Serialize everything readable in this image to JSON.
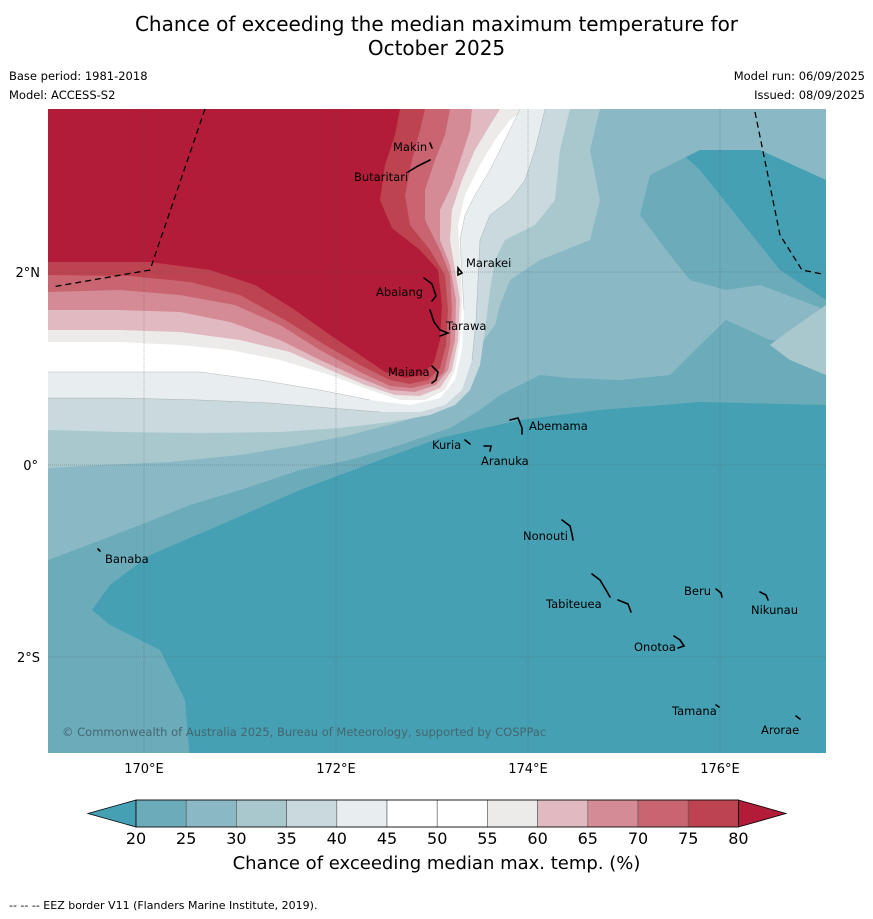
{
  "header": {
    "title_line1": "Chance of exceeding the median maximum temperature for",
    "title_line2": "October 2025",
    "base_period": "Base period: 1981-2018",
    "model": "Model: ACCESS-S2",
    "model_run": "Model run: 06/09/2025",
    "issued": "Issued: 08/09/2025"
  },
  "map": {
    "lat_labels": [
      "2°N",
      "0°",
      "2°S"
    ],
    "lon_labels": [
      "170°E",
      "172°E",
      "174°E",
      "176°E"
    ],
    "places": [
      "Makin",
      "Butaritari",
      "Marakei",
      "Abaiang",
      "Tarawa",
      "Maiana",
      "Abemama",
      "Kuria",
      "Aranuka",
      "Nonouti",
      "Banaba",
      "Tabiteuea",
      "Beru",
      "Nikunau",
      "Onotoa",
      "Tamana",
      "Arorae"
    ],
    "copyright": "© Commonwealth of Australia 2025, Bureau of Meteorology, supported by COSPPac"
  },
  "colorbar": {
    "ticks": [
      "20",
      "25",
      "30",
      "35",
      "40",
      "45",
      "50",
      "55",
      "60",
      "65",
      "70",
      "75",
      "80"
    ],
    "colors": [
      "#44a0b2",
      "#6cabba",
      "#8ab9c5",
      "#a8c8cd",
      "#c9d9dd",
      "#e8eef0",
      "#ffffff",
      "#ffffff",
      "#ecebea",
      "#e1b9c0",
      "#d48b95",
      "#c86570",
      "#bd4351",
      "#b31c38"
    ],
    "label": "Chance of exceeding median max. temp. (%)"
  },
  "footer": {
    "eez_note": "--  --  -- EEZ border V11 (Flanders Marine Institute, 2019)."
  }
}
